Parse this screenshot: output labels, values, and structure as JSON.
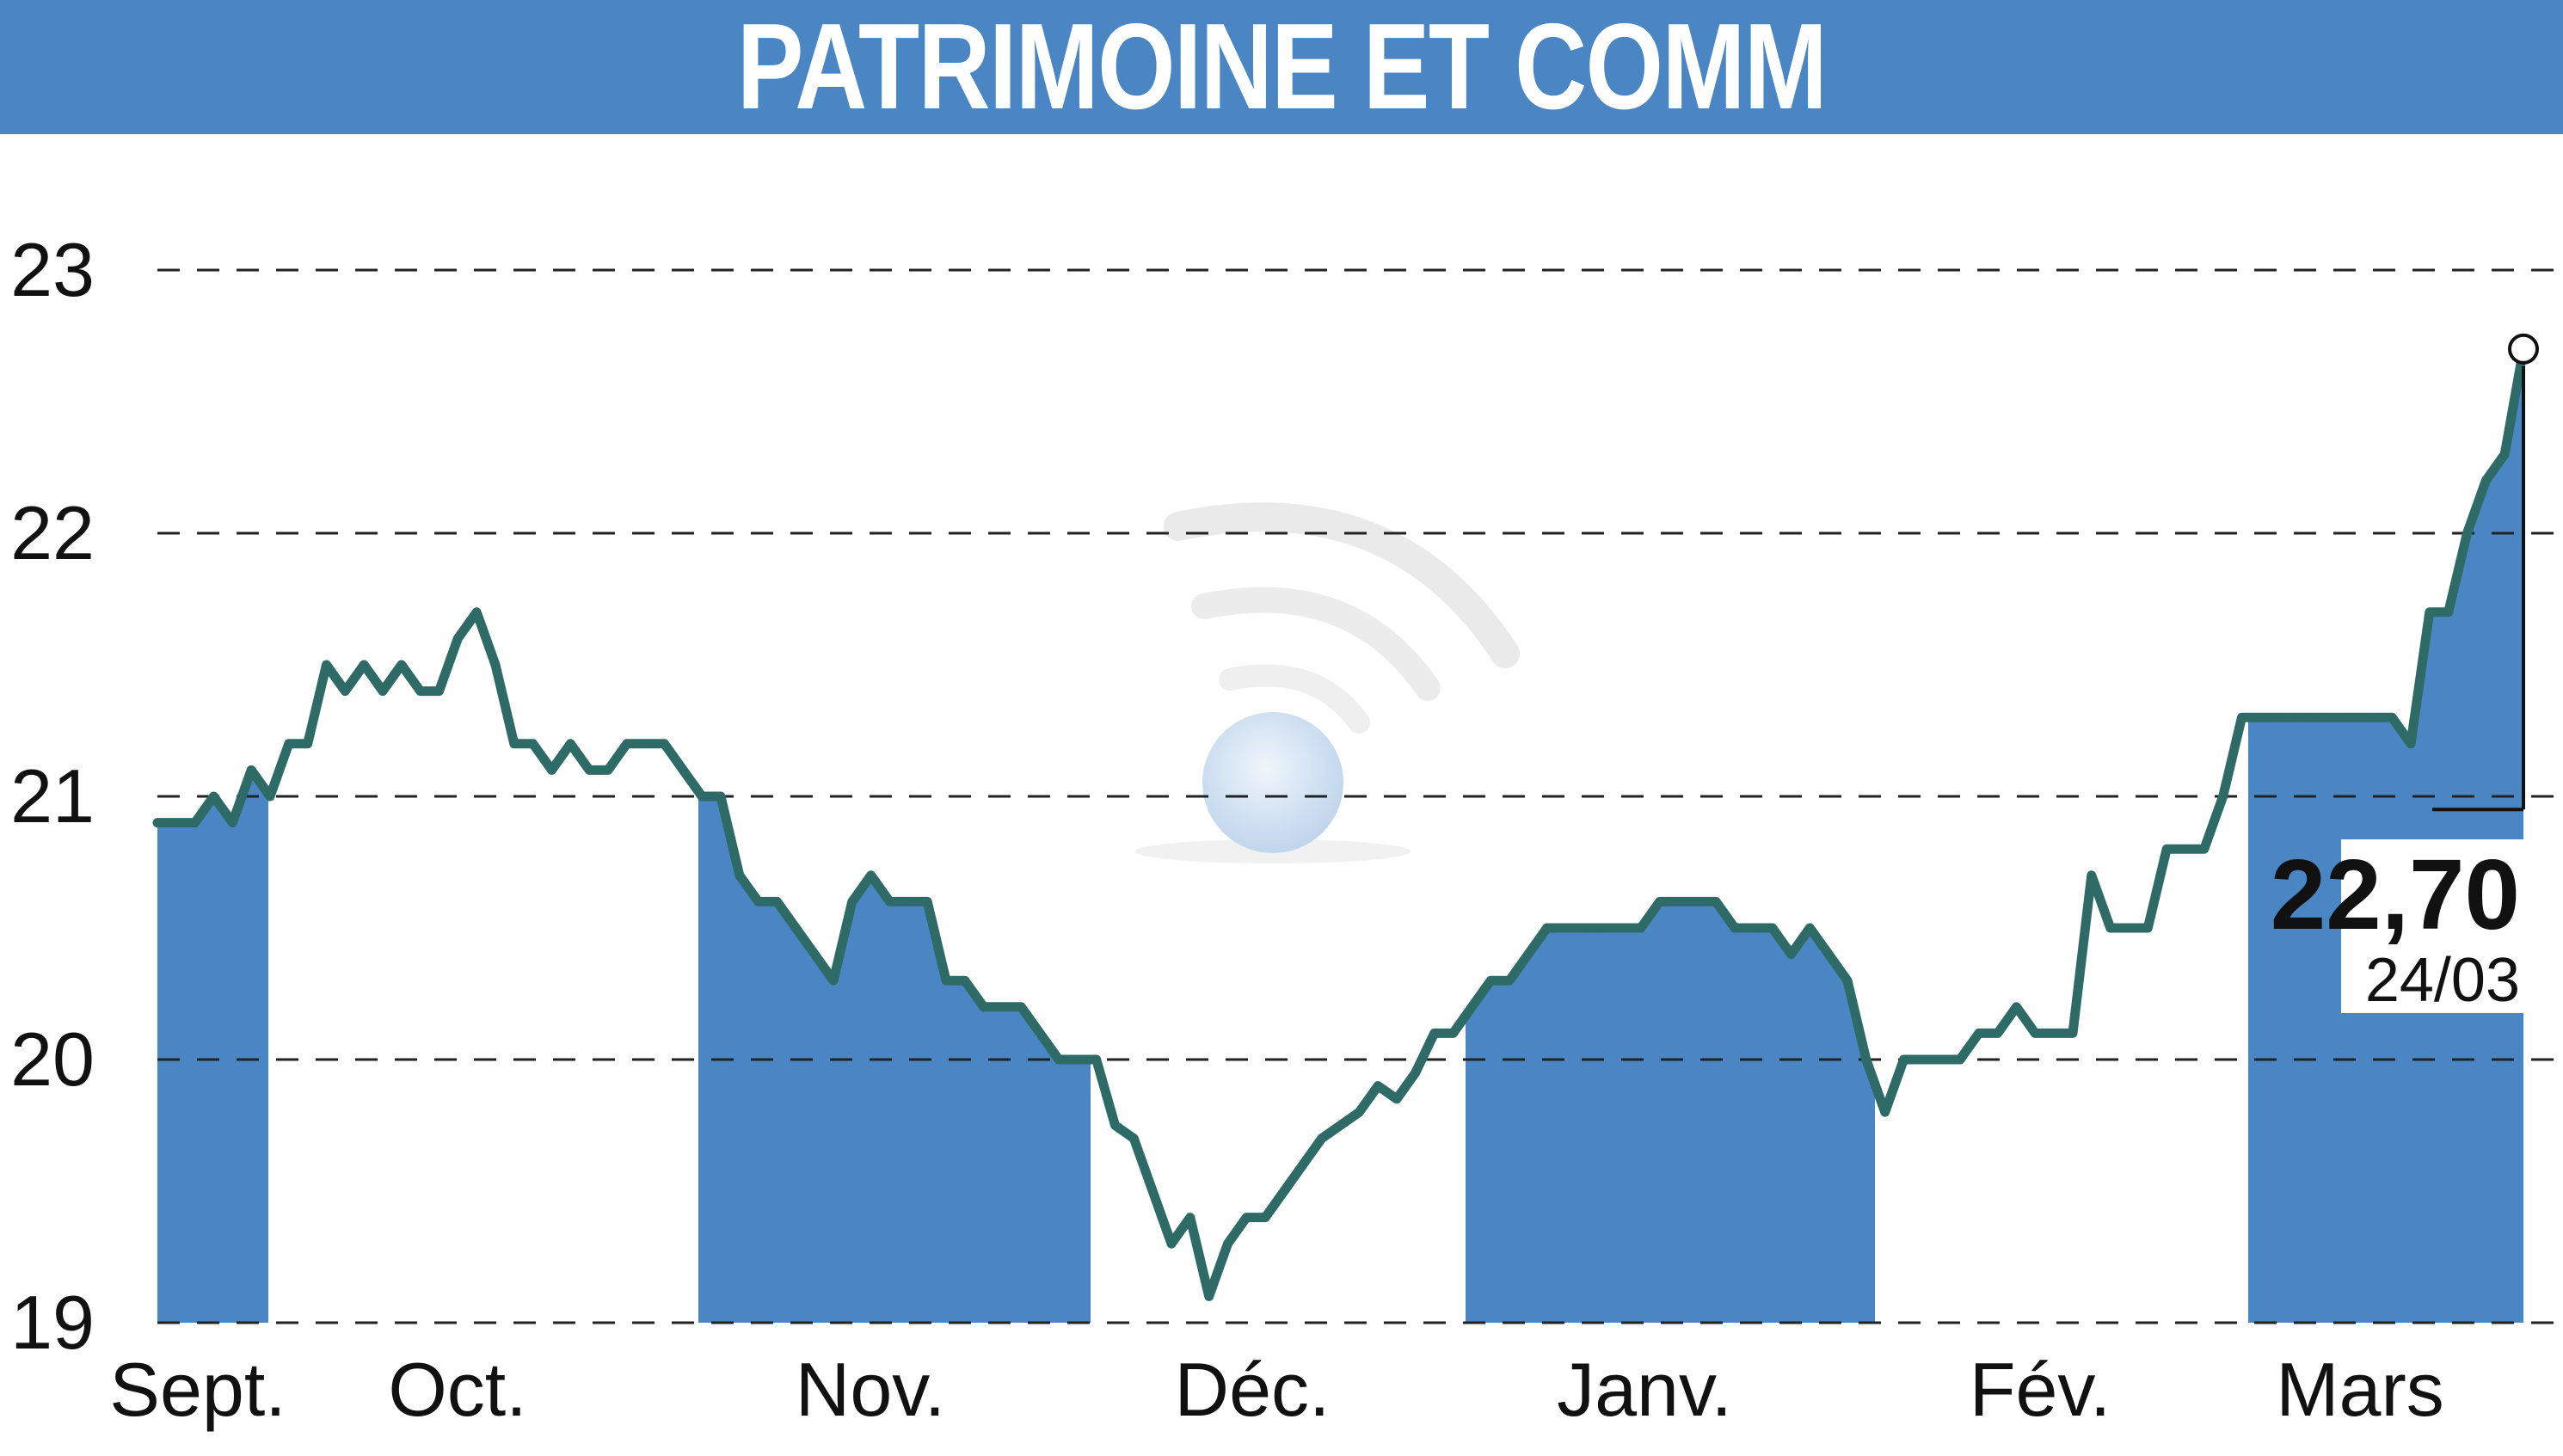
{
  "title": "PATRIMOINE ET COMM",
  "colors": {
    "header_bg": "#4a86c4",
    "area_fill": "#4a86c4",
    "line": "#2e6b67",
    "grid": "#222222",
    "text": "#111111"
  },
  "chart_data": {
    "type": "line",
    "title": "PATRIMOINE ET COMM",
    "xlabel": "",
    "ylabel": "",
    "ylim": [
      19,
      23
    ],
    "y_ticks": [
      "19",
      "20",
      "21",
      "22",
      "23"
    ],
    "grid": "horizontal dashed",
    "months": [
      "Sept.",
      "Oct.",
      "Nov.",
      "Déc.",
      "Janv.",
      "Fév.",
      "Mars"
    ],
    "last_value_label": "22,70",
    "last_date_label": "24/03",
    "series": [
      {
        "values": [
          20.9,
          20.9,
          20.9,
          21.0,
          20.9,
          21.1,
          21.0,
          21.2,
          21.2,
          21.5,
          21.4,
          21.5,
          21.4,
          21.5,
          21.4,
          21.4,
          21.6,
          21.7,
          21.5,
          21.2,
          21.2,
          21.1,
          21.2,
          21.1,
          21.1,
          21.2,
          21.2,
          21.2,
          21.1,
          21.0,
          21.0,
          20.7,
          20.6,
          20.6,
          20.5,
          20.4,
          20.3,
          20.6,
          20.7,
          20.6,
          20.6,
          20.6,
          20.3,
          20.3,
          20.2,
          20.2,
          20.2,
          20.1,
          20.0,
          20.0,
          20.0,
          19.75,
          19.7,
          19.5,
          19.3,
          19.4,
          19.1,
          19.3,
          19.4,
          19.4,
          19.5,
          19.6,
          19.7,
          19.75,
          19.8,
          19.9,
          19.85,
          19.95,
          20.1,
          20.1,
          20.2,
          20.3,
          20.3,
          20.4,
          20.5,
          20.5,
          20.5,
          20.5,
          20.5,
          20.5,
          20.6,
          20.6,
          20.6,
          20.6,
          20.5,
          20.5,
          20.5,
          20.4,
          20.5,
          20.4,
          20.3,
          20.0,
          19.8,
          20.0,
          20.0,
          20.0,
          20.0,
          20.1,
          20.1,
          20.2,
          20.1,
          20.1,
          20.1,
          20.7,
          20.5,
          20.5,
          20.5,
          20.8,
          20.8,
          20.8,
          21.0,
          21.3,
          21.3,
          21.3,
          21.3,
          21.3,
          21.3,
          21.3,
          21.3,
          21.3,
          21.2,
          21.7,
          21.7,
          22.0,
          22.2,
          22.3,
          22.7
        ]
      }
    ]
  }
}
